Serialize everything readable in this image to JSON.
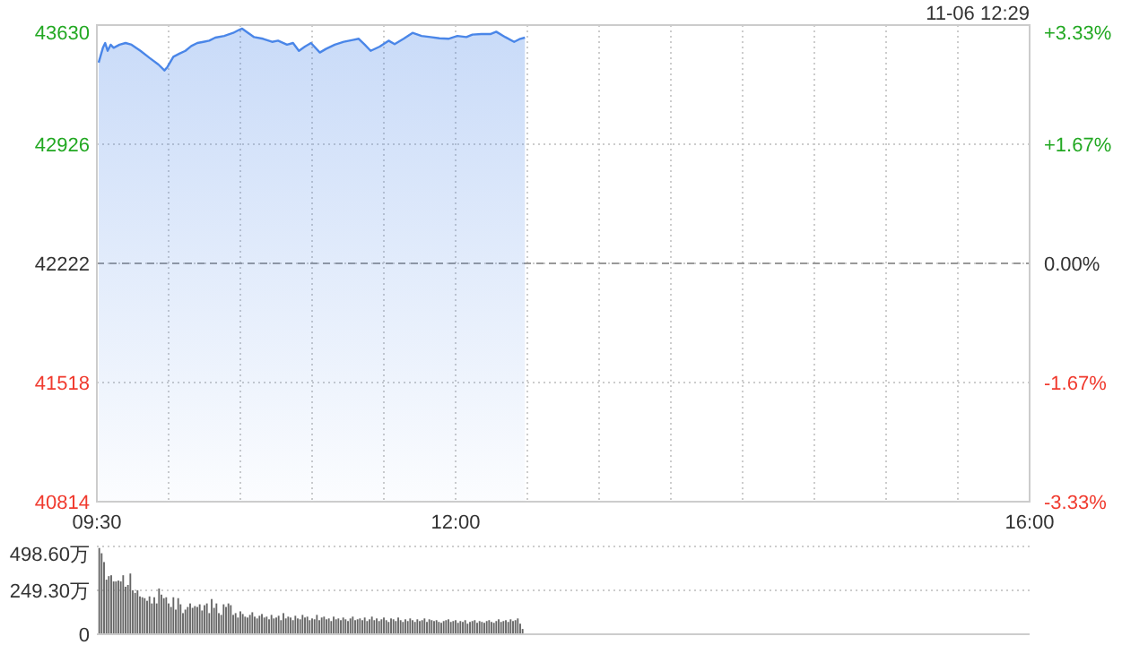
{
  "chart_data": [
    {
      "type": "area",
      "color": "#4a86e8",
      "annotations": [
        "11-06 12:29"
      ],
      "x": [
        9.5125,
        9.542,
        9.558,
        9.575,
        9.596,
        9.617,
        9.658,
        9.7,
        9.742,
        9.804,
        9.867,
        9.929,
        9.971,
        9.992,
        10.033,
        10.075,
        10.117,
        10.158,
        10.2,
        10.242,
        10.283,
        10.325,
        10.3875,
        10.45,
        10.492,
        10.5125,
        10.554,
        10.596,
        10.658,
        10.721,
        10.7625,
        10.825,
        10.867,
        10.908,
        10.95,
        10.992,
        11.054,
        11.096,
        11.158,
        11.221,
        11.283,
        11.325,
        11.367,
        11.408,
        11.471,
        11.533,
        11.575,
        11.6375,
        11.7,
        11.7625,
        11.825,
        11.8875,
        11.95,
        12.0125,
        12.075,
        12.117,
        12.179,
        12.242,
        12.283,
        12.346,
        12.408,
        12.45,
        12.483
      ],
      "values": [
        43408,
        43496,
        43524,
        43478,
        43514,
        43496,
        43514,
        43524,
        43514,
        43478,
        43436,
        43397,
        43362,
        43383,
        43443,
        43461,
        43478,
        43506,
        43524,
        43531,
        43538,
        43556,
        43566,
        43584,
        43602,
        43609,
        43584,
        43559,
        43549,
        43531,
        43538,
        43514,
        43524,
        43478,
        43503,
        43524,
        43468,
        43489,
        43514,
        43531,
        43542,
        43549,
        43514,
        43478,
        43503,
        43538,
        43517,
        43549,
        43584,
        43566,
        43559,
        43552,
        43549,
        43566,
        43559,
        43574,
        43577,
        43577,
        43591,
        43559,
        43531,
        43549,
        43556
      ],
      "xlim": [
        9.5,
        16
      ],
      "ylim": [
        40814,
        43630
      ],
      "xticks": [
        {
          "value": 9.5,
          "label": "09:30"
        },
        {
          "value": 10,
          "label": null
        },
        {
          "value": 10.5,
          "label": null
        },
        {
          "value": 11,
          "label": null
        },
        {
          "value": 11.5,
          "label": null
        },
        {
          "value": 12,
          "label": "12:00"
        },
        {
          "value": 12.5,
          "label": null
        },
        {
          "value": 13,
          "label": null
        },
        {
          "value": 13.5,
          "label": null
        },
        {
          "value": 14,
          "label": null
        },
        {
          "value": 14.5,
          "label": null
        },
        {
          "value": 15,
          "label": null
        },
        {
          "value": 15.5,
          "label": null
        },
        {
          "value": 16,
          "label": "16:00"
        }
      ],
      "yticks": [
        40814,
        41518,
        42222,
        42926,
        43630
      ],
      "y2lim": [
        -3.33,
        3.33
      ],
      "y2ticks": [
        {
          "value": -3.33,
          "label": "-3.33%"
        },
        {
          "value": -1.67,
          "label": "-1.67%"
        },
        {
          "value": 0,
          "label": "0.00%"
        },
        {
          "value": 1.67,
          "label": "+1.67%"
        },
        {
          "value": 3.33,
          "label": "+3.33%"
        }
      ],
      "grid": true,
      "ref_lines": [
        {
          "axis": "y",
          "value": 42222,
          "color": "#999999",
          "line_style": "dashed"
        }
      ]
    },
    {
      "type": "bar",
      "color": "#666666",
      "xlim": [
        9.5,
        16
      ],
      "ylim": [
        0,
        498.6
      ],
      "yticks": [
        0,
        {
          "value": 249.3,
          "label": "249.30万"
        },
        {
          "value": 498.6,
          "label": "498.60万"
        }
      ],
      "grid": "y",
      "tick_labels": "y",
      "x": [
        9.5167,
        9.5333,
        9.55,
        9.5667,
        9.5833,
        9.6,
        9.6167,
        9.6333,
        9.65,
        9.6667,
        9.6833,
        9.7,
        9.7167,
        9.7333,
        9.75,
        9.7667,
        9.7833,
        9.8,
        9.8167,
        9.8333,
        9.85,
        9.8667,
        9.8833,
        9.9,
        9.9167,
        9.9333,
        9.95,
        9.9667,
        9.9833,
        10,
        10.0167,
        10.0333,
        10.05,
        10.0667,
        10.0833,
        10.1,
        10.1167,
        10.1333,
        10.15,
        10.1667,
        10.1833,
        10.2,
        10.2167,
        10.2333,
        10.25,
        10.2667,
        10.2833,
        10.3,
        10.3167,
        10.3333,
        10.35,
        10.3667,
        10.3833,
        10.4,
        10.4167,
        10.4333,
        10.45,
        10.4667,
        10.4833,
        10.5,
        10.5167,
        10.5333,
        10.55,
        10.5667,
        10.5833,
        10.6,
        10.6167,
        10.6333,
        10.65,
        10.6667,
        10.6833,
        10.7,
        10.7167,
        10.7333,
        10.75,
        10.7667,
        10.7833,
        10.8,
        10.8167,
        10.8333,
        10.85,
        10.8667,
        10.8833,
        10.9,
        10.9167,
        10.9333,
        10.95,
        10.9667,
        10.9833,
        11,
        11.0167,
        11.0333,
        11.05,
        11.0667,
        11.0833,
        11.1,
        11.1167,
        11.1333,
        11.15,
        11.1667,
        11.1833,
        11.2,
        11.2167,
        11.2333,
        11.25,
        11.2667,
        11.2833,
        11.3,
        11.3167,
        11.3333,
        11.35,
        11.3667,
        11.3833,
        11.4,
        11.4167,
        11.4333,
        11.45,
        11.4667,
        11.4833,
        11.5,
        11.5167,
        11.5333,
        11.55,
        11.5667,
        11.5833,
        11.6,
        11.6167,
        11.6333,
        11.65,
        11.6667,
        11.6833,
        11.7,
        11.7167,
        11.7333,
        11.75,
        11.7667,
        11.7833,
        11.8,
        11.8167,
        11.8333,
        11.85,
        11.8667,
        11.8833,
        11.9,
        11.9167,
        11.9333,
        11.95,
        11.9667,
        11.9833,
        12,
        12.0167,
        12.0333,
        12.05,
        12.0667,
        12.0833,
        12.1,
        12.1167,
        12.1333,
        12.15,
        12.1667,
        12.1833,
        12.2,
        12.2167,
        12.2333,
        12.25,
        12.2667,
        12.2833,
        12.3,
        12.3167,
        12.3333,
        12.35,
        12.3667,
        12.3833,
        12.4,
        12.4167,
        12.4333,
        12.45,
        12.4667
      ],
      "values": [
        490,
        460,
        410,
        310,
        330,
        335,
        300,
        300,
        305,
        300,
        335,
        270,
        280,
        345,
        250,
        235,
        250,
        215,
        210,
        205,
        190,
        215,
        175,
        210,
        175,
        260,
        225,
        205,
        210,
        175,
        155,
        210,
        140,
        205,
        170,
        120,
        140,
        155,
        175,
        150,
        160,
        155,
        170,
        135,
        165,
        175,
        120,
        200,
        150,
        175,
        120,
        110,
        170,
        155,
        175,
        165,
        110,
        120,
        95,
        130,
        115,
        100,
        95,
        110,
        125,
        100,
        90,
        105,
        115,
        95,
        100,
        85,
        110,
        90,
        95,
        105,
        80,
        120,
        90,
        100,
        95,
        80,
        105,
        90,
        85,
        110,
        95,
        100,
        80,
        90,
        85,
        110,
        80,
        95,
        100,
        85,
        90,
        75,
        100,
        85,
        90,
        80,
        95,
        85,
        75,
        90,
        100,
        80,
        85,
        90,
        80,
        95,
        75,
        85,
        100,
        80,
        90,
        75,
        85,
        95,
        80,
        70,
        90,
        85,
        75,
        95,
        80,
        70,
        85,
        75,
        90,
        80,
        70,
        85,
        75,
        80,
        90,
        70,
        85,
        80,
        75,
        80,
        70,
        65,
        75,
        80,
        85,
        70,
        75,
        80,
        65,
        75,
        70,
        80,
        60,
        70,
        75,
        80,
        65,
        75,
        70,
        65,
        75,
        80,
        70,
        65,
        75,
        85,
        70,
        75,
        80,
        70,
        85,
        75,
        80,
        90,
        60,
        30
      ]
    }
  ]
}
